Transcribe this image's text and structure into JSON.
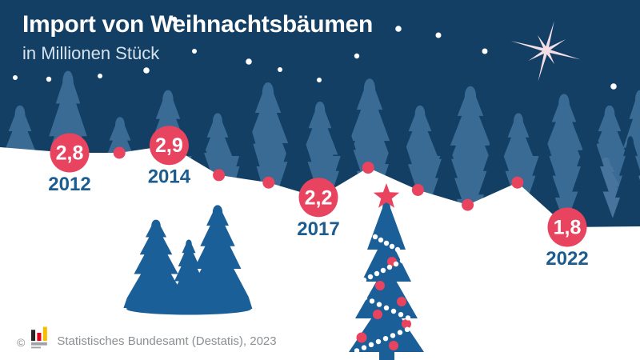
{
  "header": {
    "title": "Import von Weihnachtsbäumen",
    "subtitle": "in Millionen Stück"
  },
  "footer": {
    "copyright": "©",
    "source": "Statistisches Bundesamt (Destatis), 2023",
    "logo_icon": "destatis-bar-chart-logo"
  },
  "colors": {
    "sky": "#123F63",
    "forest_band": "#3A6B94",
    "forest_light": "#46749C",
    "tree_blue": "#1B5F99",
    "snow": "#FFFFFF",
    "accent_red": "#E8435F",
    "pale_star": "#F6DEE6",
    "title_text": "#FFFFFF",
    "subtitle_text": "#D6E3EE",
    "year_text": "#1C5C8F",
    "footer_text": "#8C9093",
    "logo_black": "#262626",
    "logo_red": "#E3001B",
    "logo_gold": "#F6BE00",
    "logo_gray": "#9EA2A5"
  },
  "chart_data": {
    "type": "line",
    "title": "Import von Weihnachtsbäumen",
    "ylabel": "in Millionen Stück",
    "x": [
      2012,
      2013,
      2014,
      2015,
      2016,
      2017,
      2018,
      2019,
      2020,
      2021,
      2022
    ],
    "values": [
      2.8,
      2.8,
      2.9,
      2.5,
      2.4,
      2.2,
      2.6,
      2.3,
      2.1,
      2.4,
      1.8
    ],
    "labeled_years": [
      2012,
      2014,
      2017,
      2022
    ],
    "labeled_values_text": {
      "2012": "2,8",
      "2014": "2,9",
      "2017": "2,2",
      "2022": "1,8"
    },
    "ylim": [
      1.5,
      3.2
    ],
    "grid": false,
    "legend": false,
    "style_note": "line drawn as snow-hill silhouette edge; labeled years as large red circles with value, other years as small red dots; values for unlabeled years estimated from the drawn line"
  }
}
